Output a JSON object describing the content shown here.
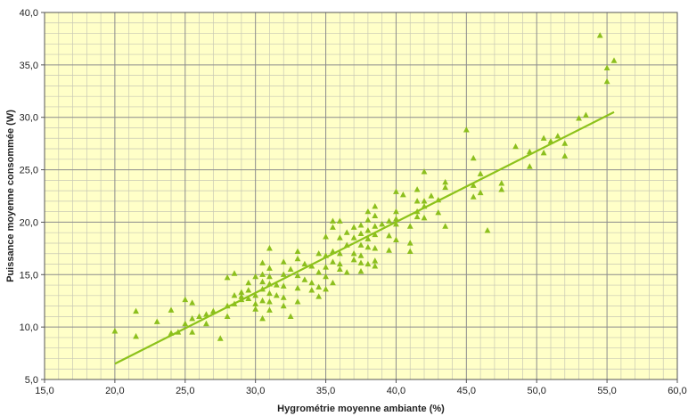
{
  "chart_data": {
    "type": "scatter",
    "title": "",
    "xlabel": "Hygrométrie moyenne ambiante (%)",
    "ylabel": "Puissance moyenne consommée (W)",
    "xlim": [
      15,
      60
    ],
    "ylim": [
      5,
      40
    ],
    "x_major_step": 5,
    "y_major_step": 5,
    "x_minor_step": 1,
    "y_minor_step": 1,
    "x_tick_labels": [
      "15,0",
      "20,0",
      "25,0",
      "30,0",
      "35,0",
      "40,0",
      "45,0",
      "50,0",
      "55,0",
      "60,0"
    ],
    "y_tick_labels": [
      "5,0",
      "10,0",
      "15,0",
      "20,0",
      "25,0",
      "30,0",
      "35,0",
      "40,0"
    ],
    "grid": true,
    "legend": "none",
    "colors": {
      "plot_background": "#ffffc8",
      "major_grid": "#8c8c8c",
      "minor_grid": "#c8c8b4",
      "marker": "#8cbf1e",
      "trendline": "#8cc21a"
    },
    "marker_shape": "triangle",
    "trendline": {
      "x": [
        20,
        55.5
      ],
      "y": [
        6.5,
        30.5
      ]
    },
    "points": [
      [
        20.0,
        9.6
      ],
      [
        21.5,
        9.1
      ],
      [
        21.5,
        11.5
      ],
      [
        23.0,
        10.5
      ],
      [
        24.0,
        9.4
      ],
      [
        24.0,
        11.6
      ],
      [
        24.5,
        9.5
      ],
      [
        25.0,
        10.3
      ],
      [
        25.0,
        12.6
      ],
      [
        25.5,
        9.5
      ],
      [
        25.5,
        10.8
      ],
      [
        25.5,
        12.3
      ],
      [
        26.0,
        11.0
      ],
      [
        26.5,
        10.3
      ],
      [
        26.5,
        11.2
      ],
      [
        27.0,
        11.5
      ],
      [
        27.5,
        8.9
      ],
      [
        28.0,
        14.7
      ],
      [
        28.0,
        12.0
      ],
      [
        28.0,
        11.0
      ],
      [
        28.5,
        15.1
      ],
      [
        28.5,
        13.0
      ],
      [
        28.5,
        12.2
      ],
      [
        29.0,
        13.3
      ],
      [
        29.0,
        12.6
      ],
      [
        29.0,
        12.9
      ],
      [
        29.5,
        14.2
      ],
      [
        29.5,
        13.5
      ],
      [
        29.5,
        12.7
      ],
      [
        30.0,
        14.8
      ],
      [
        30.0,
        13.0
      ],
      [
        30.0,
        12.2
      ],
      [
        30.0,
        11.7
      ],
      [
        30.5,
        16.1
      ],
      [
        30.5,
        15.0
      ],
      [
        30.5,
        14.3
      ],
      [
        30.5,
        13.6
      ],
      [
        30.5,
        12.5
      ],
      [
        30.5,
        10.8
      ],
      [
        31.0,
        17.5
      ],
      [
        31.0,
        15.6
      ],
      [
        31.0,
        14.8
      ],
      [
        31.0,
        14.1
      ],
      [
        31.0,
        13.2
      ],
      [
        31.0,
        12.4
      ],
      [
        31.0,
        11.6
      ],
      [
        31.5,
        14.0
      ],
      [
        31.5,
        13.0
      ],
      [
        32.0,
        16.2
      ],
      [
        32.0,
        15.0
      ],
      [
        32.0,
        13.9
      ],
      [
        32.0,
        12.8
      ],
      [
        32.0,
        12.0
      ],
      [
        32.5,
        15.5
      ],
      [
        32.5,
        11.0
      ],
      [
        33.0,
        17.2
      ],
      [
        33.0,
        16.5
      ],
      [
        33.0,
        14.9
      ],
      [
        33.0,
        13.7
      ],
      [
        33.0,
        12.4
      ],
      [
        33.5,
        16.0
      ],
      [
        33.5,
        14.5
      ],
      [
        34.0,
        15.8
      ],
      [
        34.0,
        14.2
      ],
      [
        34.0,
        13.5
      ],
      [
        34.5,
        17.0
      ],
      [
        34.5,
        15.2
      ],
      [
        34.5,
        13.8
      ],
      [
        34.5,
        12.9
      ],
      [
        35.0,
        18.6
      ],
      [
        35.0,
        16.8
      ],
      [
        35.0,
        15.7
      ],
      [
        35.0,
        14.8
      ],
      [
        35.0,
        13.6
      ],
      [
        35.5,
        20.1
      ],
      [
        35.5,
        19.5
      ],
      [
        35.5,
        17.2
      ],
      [
        35.5,
        16.2
      ],
      [
        35.5,
        14.2
      ],
      [
        36.0,
        20.1
      ],
      [
        36.0,
        18.5
      ],
      [
        36.0,
        17.0
      ],
      [
        36.0,
        16.0
      ],
      [
        36.0,
        15.5
      ],
      [
        36.5,
        19.0
      ],
      [
        36.5,
        17.8
      ],
      [
        36.5,
        15.2
      ],
      [
        37.0,
        19.5
      ],
      [
        37.0,
        18.5
      ],
      [
        37.0,
        17.0
      ],
      [
        37.0,
        16.4
      ],
      [
        37.5,
        19.7
      ],
      [
        37.5,
        18.9
      ],
      [
        37.5,
        17.8
      ],
      [
        37.5,
        16.8
      ],
      [
        37.5,
        16.1
      ],
      [
        37.5,
        15.3
      ],
      [
        38.0,
        21.0
      ],
      [
        38.0,
        20.2
      ],
      [
        38.0,
        19.2
      ],
      [
        38.0,
        18.4
      ],
      [
        38.0,
        17.6
      ],
      [
        38.0,
        16.0
      ],
      [
        38.5,
        21.5
      ],
      [
        38.5,
        20.6
      ],
      [
        38.5,
        19.6
      ],
      [
        38.5,
        18.8
      ],
      [
        38.5,
        17.5
      ],
      [
        38.5,
        16.3
      ],
      [
        38.5,
        15.8
      ],
      [
        39.0,
        19.8
      ],
      [
        39.5,
        20.1
      ],
      [
        39.5,
        18.7
      ],
      [
        39.5,
        17.3
      ],
      [
        40.0,
        22.9
      ],
      [
        40.0,
        21.0
      ],
      [
        40.0,
        20.3
      ],
      [
        40.0,
        19.8
      ],
      [
        40.0,
        18.3
      ],
      [
        40.5,
        22.6
      ],
      [
        41.0,
        19.6
      ],
      [
        41.0,
        18.0
      ],
      [
        41.0,
        17.2
      ],
      [
        41.5,
        23.1
      ],
      [
        41.5,
        22.0
      ],
      [
        41.5,
        21.0
      ],
      [
        41.5,
        20.5
      ],
      [
        42.0,
        24.8
      ],
      [
        42.0,
        22.0
      ],
      [
        42.0,
        21.5
      ],
      [
        42.0,
        20.4
      ],
      [
        42.5,
        22.5
      ],
      [
        43.0,
        22.1
      ],
      [
        43.0,
        20.9
      ],
      [
        43.5,
        23.8
      ],
      [
        43.5,
        23.3
      ],
      [
        43.5,
        19.6
      ],
      [
        45.0,
        28.8
      ],
      [
        45.5,
        26.1
      ],
      [
        45.5,
        23.5
      ],
      [
        45.5,
        22.4
      ],
      [
        46.0,
        24.6
      ],
      [
        46.0,
        22.8
      ],
      [
        46.5,
        19.2
      ],
      [
        47.5,
        23.7
      ],
      [
        47.5,
        23.1
      ],
      [
        48.5,
        27.2
      ],
      [
        49.5,
        26.7
      ],
      [
        49.5,
        25.3
      ],
      [
        50.5,
        28.0
      ],
      [
        50.5,
        26.6
      ],
      [
        51.0,
        27.7
      ],
      [
        51.5,
        28.2
      ],
      [
        52.0,
        27.5
      ],
      [
        52.0,
        26.3
      ],
      [
        53.0,
        29.9
      ],
      [
        53.5,
        30.2
      ],
      [
        54.5,
        37.8
      ],
      [
        55.0,
        34.7
      ],
      [
        55.0,
        33.4
      ],
      [
        55.5,
        35.4
      ]
    ]
  }
}
